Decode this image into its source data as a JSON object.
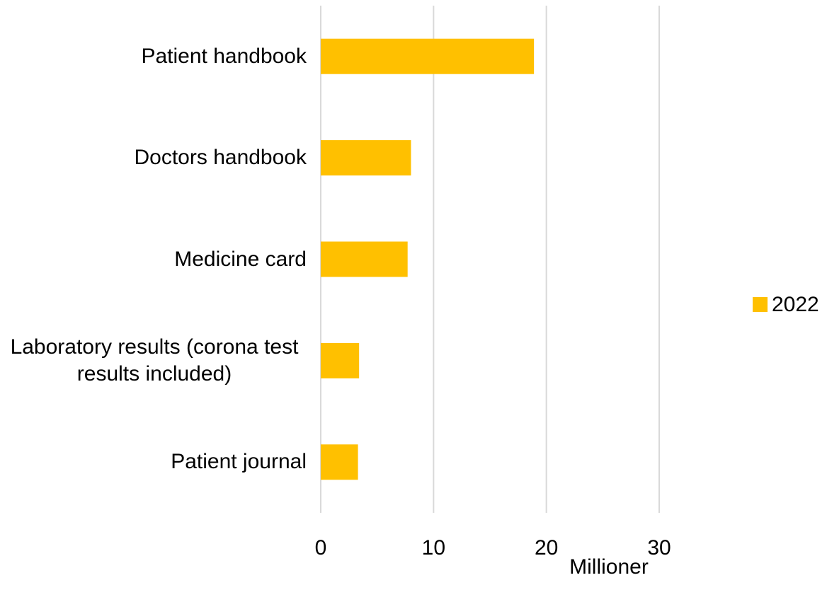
{
  "chart_data": {
    "type": "bar",
    "orientation": "horizontal",
    "categories": [
      "Patient handbook",
      "Doctors handbook",
      "Medicine card",
      "Laboratory results (corona test results included)",
      "Patient journal"
    ],
    "series": [
      {
        "name": "2022",
        "color": "#FFC000",
        "values": [
          18.9,
          8.0,
          7.7,
          3.4,
          3.3
        ]
      }
    ],
    "xlim": [
      0,
      30
    ],
    "xticks": [
      0,
      10,
      20,
      30
    ],
    "x_label": "Millioner",
    "grid": true,
    "legend": "right"
  }
}
